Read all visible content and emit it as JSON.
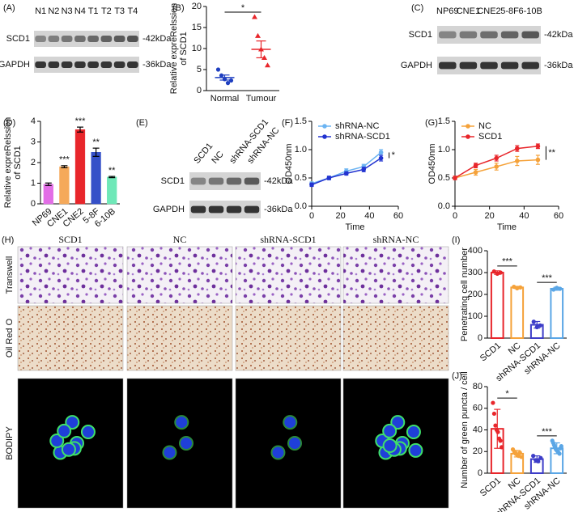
{
  "chart_data": [
    {
      "type": "dot",
      "panel": "(B)",
      "ylabel": [
        "Relative expreRelssion",
        "of SCD1"
      ],
      "categories": [
        "Normal",
        "Tumour"
      ],
      "values": [
        3.1,
        9.8
      ],
      "errors": [
        0.6,
        2.0
      ],
      "points": [
        [
          5.0,
          3.6,
          2.7,
          1.8,
          2.4
        ],
        [
          17.5,
          13.0,
          9.8,
          7.8,
          6.0
        ]
      ],
      "colors": [
        "#1f3fc0",
        "#e8262b"
      ],
      "markers": [
        "circle",
        "triangle"
      ],
      "comparisons": [
        {
          "label": "*",
          "groups": [
            0,
            1
          ]
        }
      ],
      "ylim": [
        0,
        20
      ],
      "yticks": [
        0,
        5,
        10,
        15,
        20
      ]
    },
    {
      "type": "bar",
      "panel": "(D)",
      "ylabel": [
        "Relative expreRelssion",
        "of SCD1"
      ],
      "fill": true,
      "categories": [
        "NP69",
        "CNE1",
        "CNE2",
        "5-8F",
        "6-10B"
      ],
      "values": [
        0.95,
        1.8,
        3.6,
        2.5,
        1.3
      ],
      "errors": [
        0.06,
        0.05,
        0.12,
        0.2,
        0.03
      ],
      "colors": [
        "#e26ee6",
        "#f5a95a",
        "#e8262b",
        "#3550c8",
        "#6fe8b8"
      ],
      "sig_labels": [
        null,
        "***",
        "***",
        "**",
        "**"
      ],
      "ylim": [
        0,
        4
      ],
      "yticks": [
        0,
        1,
        2,
        3,
        4
      ]
    },
    {
      "type": "line",
      "panel": "(F)",
      "xlabel": "Time",
      "ylabel": "OD450nm",
      "legend": "top-left",
      "annotation": "*",
      "x": [
        0,
        12,
        24,
        36,
        48
      ],
      "xlim": [
        0,
        60
      ],
      "xticks": [
        0,
        20,
        40,
        60
      ],
      "ylim": [
        0,
        1.5
      ],
      "yticks": [
        {
          "value": 0,
          "label": "0.0"
        },
        {
          "value": 0.5,
          "label": "0.5"
        },
        {
          "value": 1,
          "label": "1.0"
        },
        {
          "value": 1.5,
          "label": "1.5"
        }
      ],
      "series": [
        {
          "name": "shRNA-NC",
          "color": "#6cb4f2",
          "values": [
            0.4,
            0.5,
            0.62,
            0.7,
            0.95
          ],
          "errors": [
            0.03,
            0.03,
            0.04,
            0.04,
            0.05
          ]
        },
        {
          "name": "shRNA-SCD1",
          "color": "#2233d0",
          "values": [
            0.38,
            0.5,
            0.58,
            0.65,
            0.85
          ],
          "errors": [
            0.03,
            0.03,
            0.03,
            0.04,
            0.05
          ]
        }
      ]
    },
    {
      "type": "line",
      "panel": "(G)",
      "xlabel": "Time",
      "ylabel": "OD450nm",
      "legend": "top-left",
      "annotation": "**",
      "x": [
        0,
        12,
        24,
        36,
        48
      ],
      "xlim": [
        0,
        60
      ],
      "xticks": [
        0,
        20,
        40,
        60
      ],
      "ylim": [
        0,
        1.5
      ],
      "yticks": [
        {
          "value": 0,
          "label": "0.0"
        },
        {
          "value": 0.5,
          "label": "0.5"
        },
        {
          "value": 1,
          "label": "1.0"
        },
        {
          "value": 1.5,
          "label": "1.5"
        }
      ],
      "series": [
        {
          "name": "NC",
          "color": "#f5a23a",
          "values": [
            0.5,
            0.6,
            0.7,
            0.8,
            0.82
          ],
          "errors": [
            0.03,
            0.05,
            0.06,
            0.08,
            0.08
          ]
        },
        {
          "name": "SCD1",
          "color": "#e8262b",
          "values": [
            0.5,
            0.72,
            0.85,
            1.02,
            1.06
          ],
          "errors": [
            0.03,
            0.04,
            0.05,
            0.05,
            0.04
          ]
        }
      ]
    },
    {
      "type": "bar",
      "panel": "(I)",
      "ylabel": "Penetrating cell number",
      "fill": false,
      "categories": [
        "SCD1",
        "NC",
        "shRNA-SCD1",
        "shRNA-NC"
      ],
      "values": [
        300,
        232,
        61,
        226
      ],
      "errors": [
        8,
        5,
        15,
        7
      ],
      "points": [
        [
          305,
          295,
          300
        ],
        [
          235,
          228,
          232
        ],
        [
          75,
          50,
          58
        ],
        [
          222,
          230,
          226
        ]
      ],
      "colors": [
        "#e8262b",
        "#f5a23a",
        "#3d3dc8",
        "#5aa6e6"
      ],
      "comparisons": [
        {
          "label": "***",
          "groups": [
            0,
            1
          ]
        },
        {
          "label": "***",
          "groups": [
            2,
            3
          ]
        }
      ],
      "ylim": [
        0,
        400
      ],
      "yticks": [
        0,
        100,
        200,
        300,
        400
      ]
    },
    {
      "type": "bar",
      "panel": "(J)",
      "ylabel": "Number of green puncta / cell",
      "fill": false,
      "categories": [
        "SCD1",
        "NC",
        "shRNA-SCD1",
        "shRNA-NC"
      ],
      "values": [
        41,
        18,
        13,
        23
      ],
      "errors": [
        18,
        3,
        3,
        5
      ],
      "points": [
        [
          65,
          55,
          44,
          40,
          38,
          32,
          30,
          24
        ],
        [
          22,
          20,
          18,
          17,
          16,
          19,
          15
        ],
        [
          16,
          12,
          11,
          14
        ],
        [
          30,
          28,
          26,
          24,
          22,
          21,
          20,
          19,
          18,
          23,
          25
        ]
      ],
      "colors": [
        "#e8262b",
        "#f5a23a",
        "#3d3dc8",
        "#5aa6e6"
      ],
      "comparisons": [
        {
          "label": "*",
          "groups": [
            0,
            1
          ]
        },
        {
          "label": "***",
          "groups": [
            2,
            3
          ]
        }
      ],
      "ylim": [
        0,
        80
      ],
      "yticks": [
        0,
        20,
        40,
        60,
        80
      ]
    }
  ],
  "blots": [
    {
      "panel": "(A)",
      "lanes": [
        "N1",
        "N2",
        "N3",
        "N4",
        "T1",
        "T2",
        "T3",
        "T4"
      ],
      "rows": [
        {
          "label": "SCD1",
          "size": "-42kDa"
        },
        {
          "label": "GAPDH",
          "size": "-36kDa"
        }
      ]
    },
    {
      "panel": "(C)",
      "lanes": [
        "NP69",
        "CNE1",
        "CNE2",
        "5-8F",
        "6-10B"
      ],
      "rows": [
        {
          "label": "SCD1",
          "size": "-42kDa"
        },
        {
          "label": "GAPDH",
          "size": "-36kDa"
        }
      ]
    },
    {
      "panel": "(E)",
      "lanes": [
        "SCD1",
        "NC",
        "shRNA-SCD1",
        "shRNA-NC"
      ],
      "rows": [
        {
          "label": "SCD1",
          "size": "-42kDa"
        },
        {
          "label": "GAPDH",
          "size": "-36kDa"
        }
      ]
    }
  ],
  "micrographs": {
    "panel": "(H)",
    "columns": [
      "SCD1",
      "NC",
      "shRNA-SCD1",
      "shRNA-NC"
    ],
    "rows": [
      "Transwell",
      "Oil Red O",
      "BODIPY"
    ]
  }
}
